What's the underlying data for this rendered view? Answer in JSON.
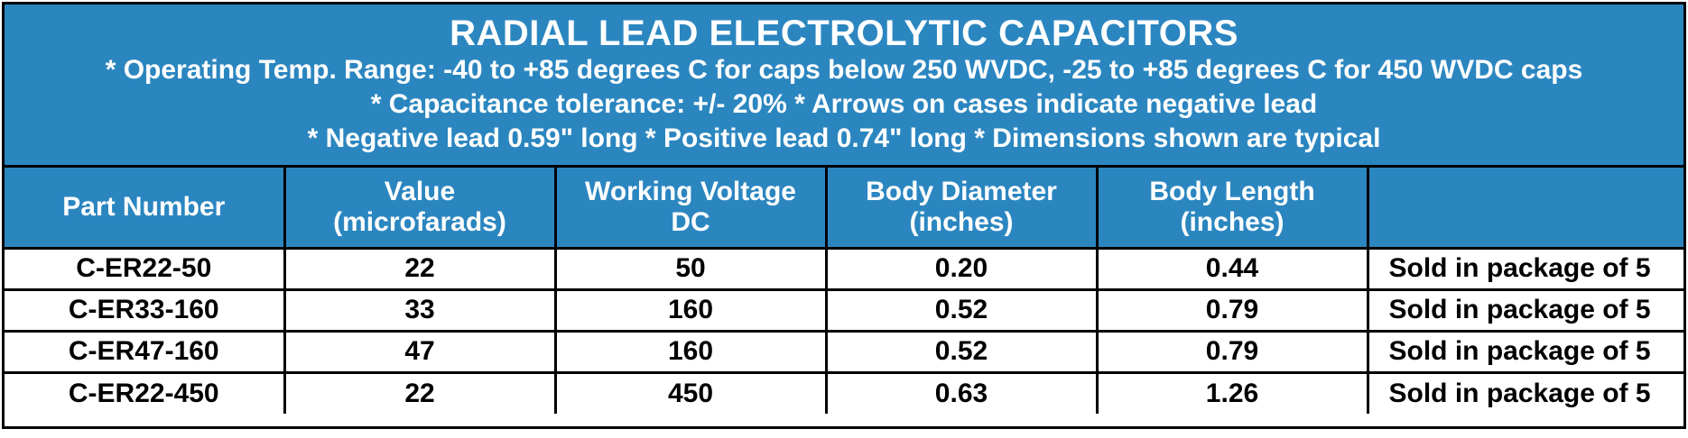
{
  "header": {
    "title": "RADIAL LEAD ELECTROLYTIC CAPACITORS",
    "notes": [
      "* Operating Temp. Range: -40 to +85 degrees C for caps below 250 WVDC, -25 to +85 degrees C for 450 WVDC caps",
      "* Capacitance tolerance: +/- 20%   * Arrows on cases indicate negative lead",
      "* Negative lead 0.59\" long  * Positive lead  0.74\" long * Dimensions shown are  typical"
    ]
  },
  "table": {
    "columns": [
      {
        "line1": "Part Number",
        "line2": ""
      },
      {
        "line1": "Value",
        "line2": "(microfarads)"
      },
      {
        "line1": "Working Voltage",
        "line2": "DC"
      },
      {
        "line1": "Body Diameter",
        "line2": "(inches)"
      },
      {
        "line1": "Body Length",
        "line2": "(inches)"
      },
      {
        "line1": "",
        "line2": ""
      }
    ],
    "rows": [
      {
        "part": "C-ER22-50",
        "value": "22",
        "voltage": "50",
        "diameter": "0.20",
        "length": "0.44",
        "package": "Sold in package of 5"
      },
      {
        "part": "C-ER33-160",
        "value": "33",
        "voltage": "160",
        "diameter": "0.52",
        "length": "0.79",
        "package": "Sold in package of 5"
      },
      {
        "part": "C-ER47-160",
        "value": "47",
        "voltage": "160",
        "diameter": "0.52",
        "length": "0.79",
        "package": "Sold in package of 5"
      },
      {
        "part": "C-ER22-450",
        "value": "22",
        "voltage": "450",
        "diameter": "0.63",
        "length": "1.26",
        "package": "Sold in package of 5"
      }
    ]
  },
  "colors": {
    "header_blue": "#2b86c0",
    "border": "#000000",
    "text_light": "#ffffff",
    "text_dark": "#000000"
  }
}
